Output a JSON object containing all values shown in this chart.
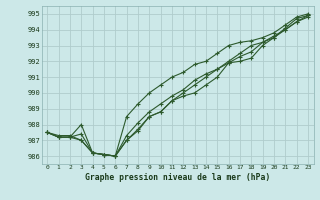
{
  "title": "Graphe pression niveau de la mer (hPa)",
  "background_color": "#cce8e8",
  "grid_color": "#b0cccc",
  "line_color": "#2d5a2d",
  "xlim": [
    -0.5,
    23.5
  ],
  "ylim": [
    985.5,
    995.5
  ],
  "yticks": [
    986,
    987,
    988,
    989,
    990,
    991,
    992,
    993,
    994,
    995
  ],
  "xticks": [
    0,
    1,
    2,
    3,
    4,
    5,
    6,
    7,
    8,
    9,
    10,
    11,
    12,
    13,
    14,
    15,
    16,
    17,
    18,
    19,
    20,
    21,
    22,
    23
  ],
  "series": [
    [
      987.5,
      987.3,
      987.3,
      987.0,
      986.2,
      986.1,
      986.0,
      987.0,
      987.6,
      988.5,
      988.8,
      989.5,
      989.8,
      990.0,
      990.5,
      991.0,
      991.9,
      992.0,
      992.2,
      993.0,
      993.5,
      994.0,
      994.5,
      994.8
    ],
    [
      987.5,
      987.2,
      987.2,
      988.0,
      986.2,
      986.1,
      986.0,
      988.5,
      989.3,
      990.0,
      990.5,
      991.0,
      991.3,
      991.8,
      992.0,
      992.5,
      993.0,
      993.2,
      993.3,
      993.5,
      993.8,
      994.3,
      994.8,
      995.0
    ],
    [
      987.5,
      987.2,
      987.2,
      987.4,
      986.2,
      986.1,
      986.0,
      987.3,
      988.1,
      988.8,
      989.3,
      989.8,
      990.2,
      990.8,
      991.2,
      991.5,
      991.9,
      992.3,
      992.6,
      993.2,
      993.5,
      994.1,
      994.7,
      994.9
    ],
    [
      987.5,
      987.2,
      987.2,
      987.0,
      986.2,
      986.1,
      986.0,
      987.0,
      987.7,
      988.5,
      988.8,
      989.5,
      990.0,
      990.5,
      991.0,
      991.5,
      992.0,
      992.5,
      993.0,
      993.2,
      993.6,
      994.0,
      994.5,
      994.9
    ]
  ],
  "marker": "+"
}
